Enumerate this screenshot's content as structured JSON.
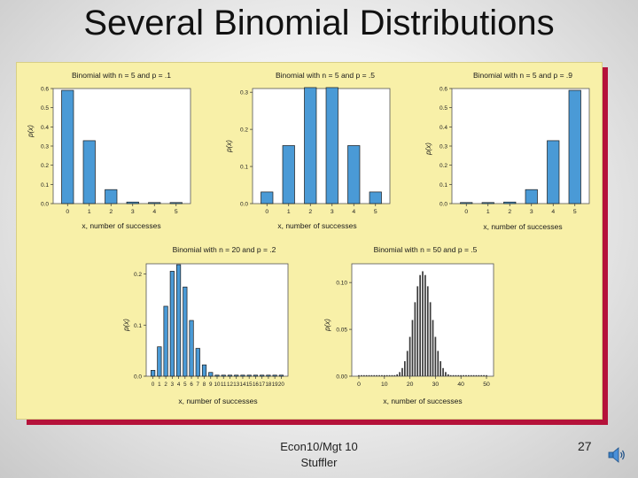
{
  "slide": {
    "title": "Several Binomial Distributions",
    "footer_line1": "Econ10/Mgt 10",
    "footer_line2": "Stuffler",
    "page_number": "27"
  },
  "colors": {
    "panel": "#f8f0a8",
    "bar_fill": "#4a9ad6",
    "bar_stroke": "#1b1b1b",
    "accent": "#b5123a"
  },
  "chart_data": [
    {
      "type": "bar",
      "title": "Binomial with n = 5 and p = .1",
      "categories": [
        0,
        1,
        2,
        3,
        4,
        5
      ],
      "values": [
        0.59049,
        0.32805,
        0.0729,
        0.0081,
        0.00045,
        1e-05
      ],
      "xlabel": "x, number of successes",
      "ylabel": "p(x)",
      "ylim": [
        0,
        0.6
      ],
      "yticks": [
        "0.0",
        "0.1",
        "0.2",
        "0.3",
        "0.4",
        "0.5",
        "0.6"
      ],
      "xticks": [
        "0",
        "1",
        "2",
        "3",
        "4",
        "5"
      ]
    },
    {
      "type": "bar",
      "title": "Binomial with n = 5 and p = .5",
      "categories": [
        0,
        1,
        2,
        3,
        4,
        5
      ],
      "values": [
        0.03125,
        0.15625,
        0.3125,
        0.3125,
        0.15625,
        0.03125
      ],
      "xlabel": "x, number of successes",
      "ylabel": "p(x)",
      "ylim": [
        0,
        0.31
      ],
      "yticks": [
        "0.0",
        "0.1",
        "0.2",
        "0.3"
      ],
      "xticks": [
        "0",
        "1",
        "2",
        "3",
        "4",
        "5"
      ]
    },
    {
      "type": "bar",
      "title": "Binomial with n = 5 and p = .9",
      "categories": [
        0,
        1,
        2,
        3,
        4,
        5
      ],
      "values": [
        1e-05,
        0.00045,
        0.0081,
        0.0729,
        0.32805,
        0.59049
      ],
      "xlabel": "x, number of successes",
      "ylabel": "p(x)",
      "ylim": [
        0,
        0.6
      ],
      "yticks": [
        "0.0",
        "0.1",
        "0.2",
        "0.3",
        "0.4",
        "0.5",
        "0.6"
      ],
      "xticks": [
        "0",
        "1",
        "2",
        "3",
        "4",
        "5"
      ]
    },
    {
      "type": "bar",
      "title": "Binomial with n = 20 and p = .2",
      "categories": [
        0,
        1,
        2,
        3,
        4,
        5,
        6,
        7,
        8,
        9,
        10,
        11,
        12,
        13,
        14,
        15,
        16,
        17,
        18,
        19,
        20
      ],
      "values": [
        0.0115,
        0.0576,
        0.1369,
        0.2054,
        0.2182,
        0.1746,
        0.1091,
        0.0545,
        0.0222,
        0.0074,
        0.002,
        0.0005,
        0.0001,
        0,
        0,
        0,
        0,
        0,
        0,
        0,
        0
      ],
      "xlabel": "x, number of successes",
      "ylabel": "p(x)",
      "ylim": [
        0,
        0.22
      ],
      "yticks": [
        "0.0",
        "0.1",
        "0.2"
      ],
      "xticks": [
        "0",
        "1",
        "2",
        "3",
        "4",
        "5",
        "6",
        "7",
        "8",
        "9",
        "10",
        "11",
        "12",
        "13",
        "14",
        "15",
        "16",
        "17",
        "18",
        "19",
        "20"
      ]
    },
    {
      "type": "bar",
      "title": "Binomial with n = 50 and p = .5",
      "x_range": [
        0,
        50
      ],
      "values": [
        0,
        0,
        0,
        0,
        0,
        0,
        0,
        0,
        0,
        0,
        1e-05,
        2e-05,
        7e-05,
        0.00026,
        0.0008,
        0.002,
        0.0044,
        0.0087,
        0.016,
        0.027,
        0.042,
        0.06,
        0.079,
        0.096,
        0.108,
        0.112,
        0.108,
        0.096,
        0.079,
        0.06,
        0.042,
        0.027,
        0.016,
        0.0087,
        0.0044,
        0.002,
        0.0008,
        0.00026,
        7e-05,
        2e-05,
        1e-05,
        0,
        0,
        0,
        0,
        0,
        0,
        0,
        0,
        0,
        0
      ],
      "xlabel": "x, number of successes",
      "ylabel": "p(x)",
      "ylim": [
        0,
        0.12
      ],
      "yticks": [
        "0.00",
        "0.05",
        "0.10"
      ],
      "xticks": [
        "0",
        "10",
        "20",
        "30",
        "40",
        "50"
      ]
    }
  ]
}
